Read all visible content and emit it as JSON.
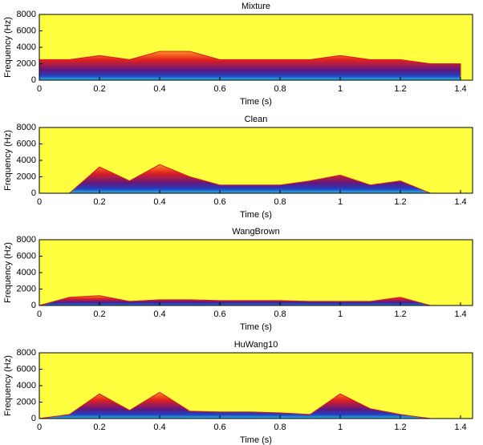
{
  "chart_data": [
    {
      "type": "spectrogram",
      "title": "Mixture",
      "xlabel": "Time (s)",
      "ylabel": "Frequency (Hz)",
      "x": [
        0,
        0.1,
        0.2,
        0.3,
        0.4,
        0.5,
        0.6,
        0.7,
        0.8,
        0.9,
        1.0,
        1.1,
        1.2,
        1.3,
        1.4
      ],
      "values": [
        2500,
        2500,
        3000,
        2500,
        3500,
        3500,
        2500,
        2500,
        2500,
        2500,
        3000,
        2500,
        2500,
        2000,
        2000
      ],
      "color": "#d42020",
      "background": "#ffff40",
      "xlim": [
        0,
        1.44
      ],
      "xticks": [
        0,
        0.2,
        0.4,
        0.6,
        0.8,
        1,
        1.2,
        1.4
      ],
      "ylim": [
        0,
        8000
      ],
      "yticks": [
        0,
        2000,
        4000,
        6000,
        8000
      ]
    },
    {
      "type": "spectrogram",
      "title": "Clean",
      "xlabel": "Time (s)",
      "ylabel": "Frequency (Hz)",
      "x": [
        0,
        0.1,
        0.2,
        0.3,
        0.4,
        0.5,
        0.6,
        0.7,
        0.8,
        0.9,
        1.0,
        1.1,
        1.2,
        1.3,
        1.4
      ],
      "values": [
        0,
        0,
        3200,
        1500,
        3500,
        2000,
        1000,
        1000,
        1000,
        1500,
        2200,
        1000,
        1500,
        0,
        0
      ],
      "color": "#d42020",
      "background": "#ffff40",
      "xlim": [
        0,
        1.44
      ],
      "xticks": [
        0,
        0.2,
        0.4,
        0.6,
        0.8,
        1,
        1.2,
        1.4
      ],
      "ylim": [
        0,
        8000
      ],
      "yticks": [
        0,
        2000,
        4000,
        6000,
        8000
      ]
    },
    {
      "type": "spectrogram",
      "title": "WangBrown",
      "xlabel": "Time (s)",
      "ylabel": "Frequency (Hz)",
      "x": [
        0,
        0.1,
        0.2,
        0.3,
        0.4,
        0.5,
        0.6,
        0.7,
        0.8,
        0.9,
        1.0,
        1.1,
        1.2,
        1.3,
        1.4
      ],
      "values": [
        0,
        1000,
        1200,
        500,
        700,
        700,
        600,
        600,
        600,
        500,
        500,
        500,
        1000,
        0,
        0
      ],
      "color": "#d42020",
      "background": "#ffff40",
      "xlim": [
        0,
        1.44
      ],
      "xticks": [
        0,
        0.2,
        0.4,
        0.6,
        0.8,
        1,
        1.2,
        1.4
      ],
      "ylim": [
        0,
        8000
      ],
      "yticks": [
        0,
        2000,
        4000,
        6000,
        8000
      ]
    },
    {
      "type": "spectrogram",
      "title": "HuWang10",
      "xlabel": "Time (s)",
      "ylabel": "Frequency (Hz)",
      "x": [
        0,
        0.1,
        0.2,
        0.3,
        0.4,
        0.5,
        0.6,
        0.7,
        0.8,
        0.9,
        1.0,
        1.1,
        1.2,
        1.3,
        1.4
      ],
      "values": [
        0,
        500,
        3000,
        1000,
        3200,
        900,
        800,
        800,
        700,
        500,
        3000,
        1200,
        500,
        0,
        0
      ],
      "color": "#d42020",
      "background": "#ffff40",
      "xlim": [
        0,
        1.44
      ],
      "xticks": [
        0,
        0.2,
        0.4,
        0.6,
        0.8,
        1,
        1.2,
        1.4
      ],
      "ylim": [
        0,
        8000
      ],
      "yticks": [
        0,
        2000,
        4000,
        6000,
        8000
      ]
    }
  ]
}
